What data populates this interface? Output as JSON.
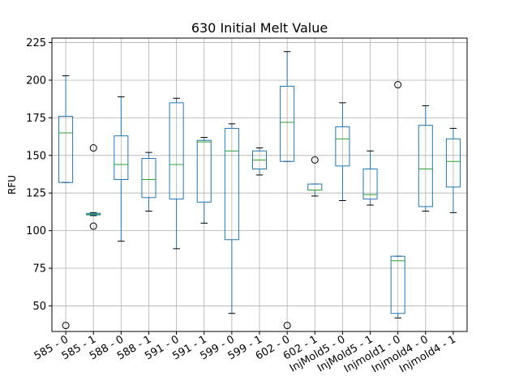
{
  "chart_data": {
    "type": "boxplot",
    "title": "630 Initial Melt Value",
    "xlabel": "",
    "ylabel": "RFU",
    "ylim": [
      33,
      228
    ],
    "yticks": [
      50,
      75,
      100,
      125,
      150,
      175,
      200,
      225
    ],
    "grid": true,
    "colors": {
      "box": "#1f77b4",
      "median": "#2ca02c",
      "grid": "#b0b0b0",
      "axes": "#000000"
    },
    "categories": [
      "585 - 0",
      "585 - 1",
      "588 - 0",
      "588 - 1",
      "591 - 0",
      "591 - 1",
      "599 - 0",
      "599 - 1",
      "602 - 0",
      "602 - 1",
      "InjMold5 - 0",
      "InjMold5 - 1",
      "Injmold1 - 0",
      "Injmold4 - 0",
      "Injmold4 - 1"
    ],
    "boxes": [
      {
        "whislo": 132,
        "q1": 132,
        "med": 165,
        "q3": 176,
        "whishi": 203,
        "fliers": [
          37
        ]
      },
      {
        "whislo": 110,
        "q1": 110.5,
        "med": 111,
        "q3": 111.5,
        "whishi": 112,
        "fliers": [
          103,
          155
        ]
      },
      {
        "whislo": 93,
        "q1": 134,
        "med": 144,
        "q3": 163,
        "whishi": 189,
        "fliers": []
      },
      {
        "whislo": 113,
        "q1": 122,
        "med": 134,
        "q3": 148,
        "whishi": 152,
        "fliers": []
      },
      {
        "whislo": 88,
        "q1": 121,
        "med": 144,
        "q3": 185,
        "whishi": 188,
        "fliers": []
      },
      {
        "whislo": 105,
        "q1": 119,
        "med": 159,
        "q3": 160,
        "whishi": 162,
        "fliers": []
      },
      {
        "whislo": 45,
        "q1": 94,
        "med": 153,
        "q3": 168,
        "whishi": 171,
        "fliers": []
      },
      {
        "whislo": 137,
        "q1": 141,
        "med": 147,
        "q3": 153,
        "whishi": 155,
        "fliers": []
      },
      {
        "whislo": 146,
        "q1": 146,
        "med": 172,
        "q3": 196,
        "whishi": 219,
        "fliers": [
          37
        ]
      },
      {
        "whislo": 123,
        "q1": 127,
        "med": 127,
        "q3": 131,
        "whishi": 131,
        "fliers": [
          147
        ]
      },
      {
        "whislo": 120,
        "q1": 143,
        "med": 161,
        "q3": 169,
        "whishi": 185,
        "fliers": []
      },
      {
        "whislo": 117,
        "q1": 121,
        "med": 124,
        "q3": 141,
        "whishi": 153,
        "fliers": []
      },
      {
        "whislo": 42,
        "q1": 45,
        "med": 80,
        "q3": 83,
        "whishi": 83,
        "fliers": [
          197
        ]
      },
      {
        "whislo": 113,
        "q1": 116,
        "med": 141,
        "q3": 170,
        "whishi": 183,
        "fliers": []
      },
      {
        "whislo": 112,
        "q1": 129,
        "med": 146,
        "q3": 161,
        "whishi": 168,
        "fliers": []
      }
    ]
  }
}
